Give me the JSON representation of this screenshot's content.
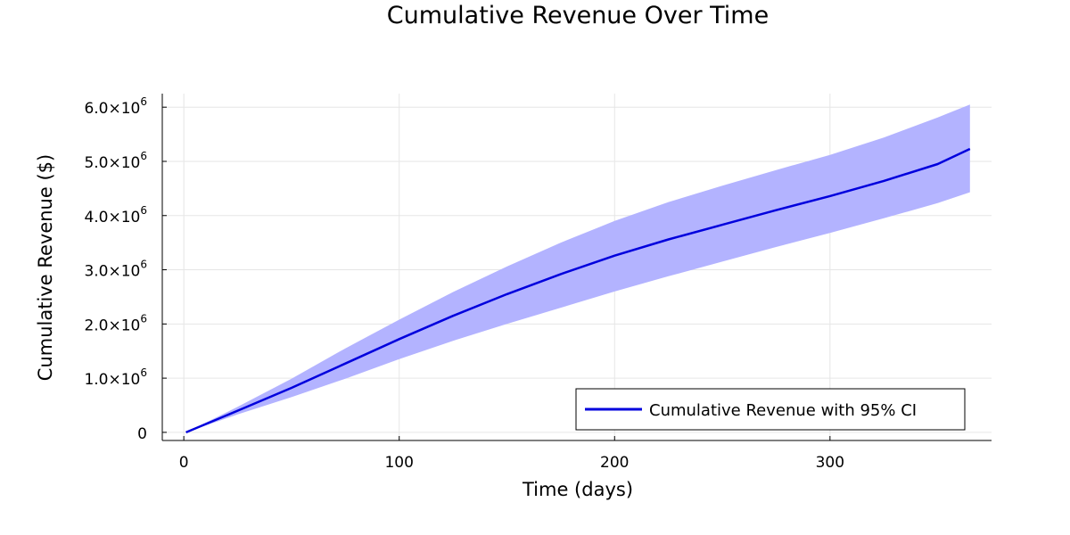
{
  "chart_data": {
    "type": "line",
    "title": "Cumulative Revenue Over Time",
    "xlabel": "Time (days)",
    "ylabel": "Cumulative Revenue ($)",
    "xlim": [
      -10,
      375
    ],
    "ylim": [
      -150000,
      6250000
    ],
    "x_ticks": [
      {
        "value": 0,
        "label": "0"
      },
      {
        "value": 100,
        "label": "100"
      },
      {
        "value": 200,
        "label": "200"
      },
      {
        "value": 300,
        "label": "300"
      }
    ],
    "y_ticks": [
      {
        "value": 0,
        "base": "0",
        "exp": ""
      },
      {
        "value": 1000000,
        "base": "1.0×10",
        "exp": "6"
      },
      {
        "value": 2000000,
        "base": "2.0×10",
        "exp": "6"
      },
      {
        "value": 3000000,
        "base": "3.0×10",
        "exp": "6"
      },
      {
        "value": 4000000,
        "base": "4.0×10",
        "exp": "6"
      },
      {
        "value": 5000000,
        "base": "5.0×10",
        "exp": "6"
      },
      {
        "value": 6000000,
        "base": "6.0×10",
        "exp": "6"
      }
    ],
    "grid": true,
    "legend_position": "bottom-right",
    "series": [
      {
        "name": "Cumulative Revenue with 95% CI",
        "color": "#0000dd",
        "band_color": "#b3b3ff",
        "x": [
          1,
          25,
          50,
          75,
          100,
          125,
          150,
          175,
          200,
          225,
          250,
          275,
          300,
          325,
          350,
          365
        ],
        "y": [
          0,
          400000,
          820000,
          1270000,
          1720000,
          2150000,
          2550000,
          2920000,
          3260000,
          3560000,
          3830000,
          4100000,
          4360000,
          4640000,
          4950000,
          5230000
        ],
        "lower": [
          0,
          330000,
          650000,
          990000,
          1350000,
          1690000,
          2000000,
          2300000,
          2600000,
          2880000,
          3150000,
          3420000,
          3680000,
          3950000,
          4230000,
          4430000
        ],
        "upper": [
          0,
          470000,
          990000,
          1550000,
          2080000,
          2590000,
          3060000,
          3500000,
          3900000,
          4250000,
          4550000,
          4840000,
          5120000,
          5440000,
          5810000,
          6050000
        ]
      }
    ]
  }
}
